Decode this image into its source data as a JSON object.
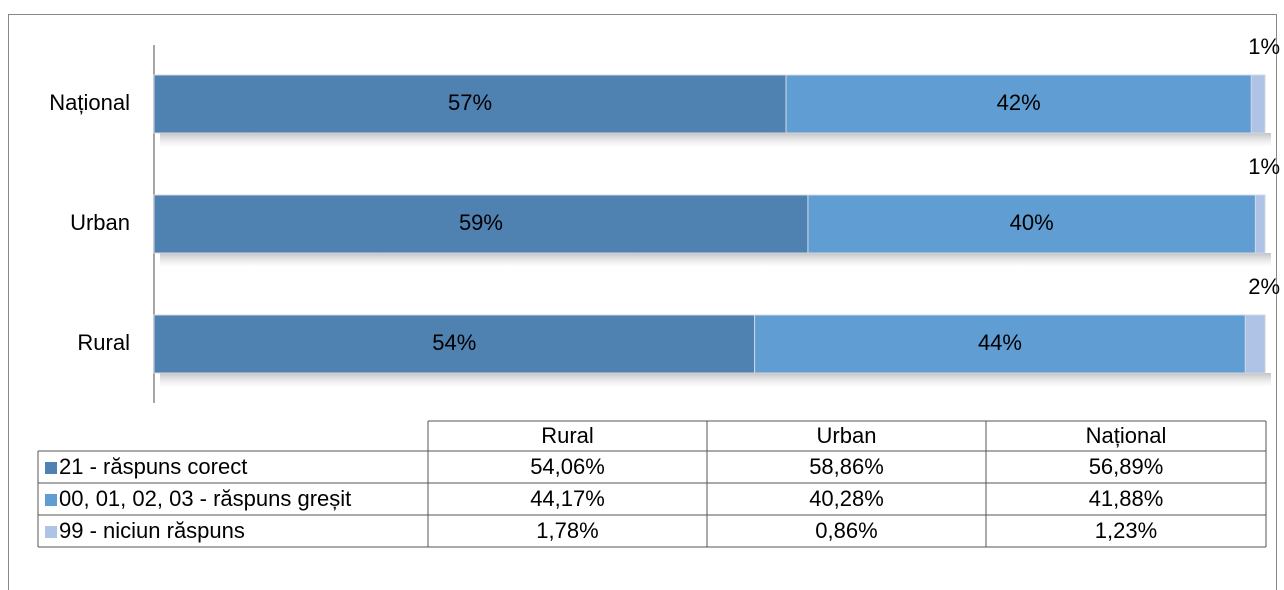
{
  "chart_data": {
    "type": "bar",
    "orientation": "horizontal",
    "stacked": true,
    "categories": [
      "Rural",
      "Urban",
      "Național"
    ],
    "xlim": [
      0,
      100
    ],
    "series": [
      {
        "name": "21 - răspuns corect",
        "color": "#4f81b1",
        "values": [
          54.06,
          58.86,
          56.89
        ],
        "value_labels": [
          "54%",
          "59%",
          "57%"
        ],
        "table_labels": [
          "54,06%",
          "58,86%",
          "56,89%"
        ]
      },
      {
        "name": "00, 01, 02, 03 - răspuns greșit",
        "color": "#5f9dd3",
        "values": [
          44.17,
          40.28,
          41.88
        ],
        "value_labels": [
          "44%",
          "40%",
          "42%"
        ],
        "table_labels": [
          "44,17%",
          "40,28%",
          "41,88%"
        ]
      },
      {
        "name": "99 - niciun răspuns",
        "color": "#aec3e5",
        "values": [
          1.78,
          0.86,
          1.23
        ],
        "value_labels": [
          "2%",
          "1%",
          "1%"
        ],
        "table_labels": [
          "1,78%",
          "0,86%",
          "1,23%"
        ]
      }
    ]
  }
}
